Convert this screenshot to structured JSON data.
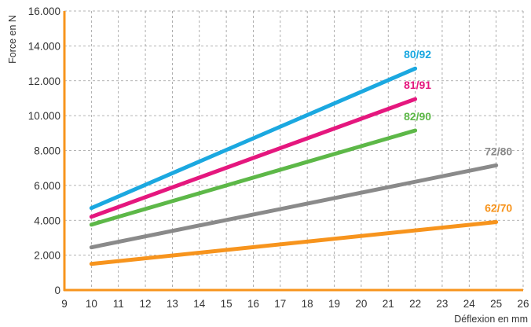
{
  "chart_data": {
    "type": "line",
    "xlabel": "Déflexion en mm",
    "ylabel": "Force en N",
    "xlim": [
      9,
      26
    ],
    "ylim": [
      0,
      16000
    ],
    "x_ticks": [
      9,
      10,
      11,
      12,
      13,
      14,
      15,
      16,
      17,
      18,
      19,
      20,
      21,
      22,
      23,
      24,
      25,
      26
    ],
    "y_tick_values": [
      0,
      2000,
      4000,
      6000,
      8000,
      10000,
      12000,
      14000,
      16000
    ],
    "y_tick_labels": [
      "0",
      "2.000",
      "4.000",
      "6.000",
      "8.000",
      "10.000",
      "12.000",
      "14.000",
      "16.000"
    ],
    "grid": true,
    "axis_color": "#f7941d",
    "series": [
      {
        "name": "80/92",
        "color": "#1ba8e0",
        "x": [
          10,
          22
        ],
        "y": [
          4700,
          12700
        ]
      },
      {
        "name": "81/91",
        "color": "#e5177e",
        "x": [
          10,
          22
        ],
        "y": [
          4200,
          10950
        ]
      },
      {
        "name": "82/90",
        "color": "#5db848",
        "x": [
          10,
          22
        ],
        "y": [
          3750,
          9150
        ]
      },
      {
        "name": "72/80",
        "color": "#8a8a8a",
        "x": [
          10,
          25
        ],
        "y": [
          2450,
          7150
        ]
      },
      {
        "name": "62/70",
        "color": "#f7941d",
        "x": [
          10,
          25
        ],
        "y": [
          1500,
          3900
        ]
      }
    ]
  }
}
